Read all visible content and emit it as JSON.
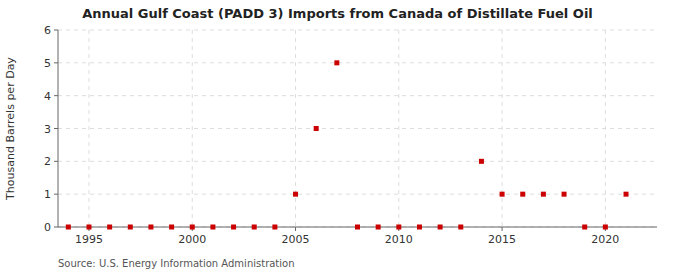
{
  "chart_data": {
    "type": "scatter",
    "title": "Annual Gulf Coast (PADD 3) Imports from Canada of Distillate Fuel Oil",
    "ylabel": "Thousand Barrels per Day",
    "annotations": [
      "Source: U.S. Energy Information Administration"
    ],
    "x": [
      1994,
      1995,
      1996,
      1997,
      1998,
      1999,
      2000,
      2001,
      2002,
      2003,
      2004,
      2005,
      2006,
      2007,
      2008,
      2009,
      2010,
      2011,
      2012,
      2013,
      2014,
      2015,
      2016,
      2017,
      2018,
      2019,
      2020,
      2021
    ],
    "values": [
      0,
      0,
      0,
      0,
      0,
      0,
      0,
      0,
      0,
      0,
      0,
      1,
      3,
      5,
      0,
      0,
      0,
      0,
      0,
      0,
      2,
      1,
      1,
      1,
      1,
      0,
      0,
      1
    ],
    "color": "#cc0000",
    "marker": "square",
    "xlim": [
      1993.5,
      2022.5
    ],
    "xticks": [
      1995,
      2000,
      2005,
      2010,
      2015,
      2020
    ],
    "ylim": [
      0,
      6
    ],
    "yticks": [
      0,
      1,
      2,
      3,
      4,
      5,
      6
    ],
    "grid": true
  }
}
